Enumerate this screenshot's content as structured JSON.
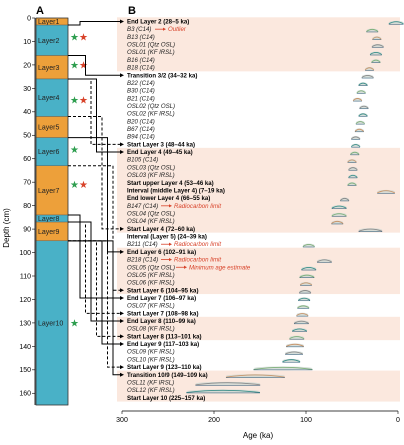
{
  "panel_a_label": "A",
  "panel_b_label": "B",
  "depth_axis": {
    "title": "Depth (cm)",
    "ticks": [
      0,
      10,
      20,
      30,
      40,
      50,
      60,
      70,
      80,
      90,
      100,
      110,
      120,
      130,
      140,
      150,
      160
    ],
    "max": 165
  },
  "age_axis": {
    "title": "Age (ka)",
    "ticks": [
      300,
      200,
      100,
      0
    ],
    "min": 0,
    "max": 300
  },
  "colors": {
    "teal": "#49b1c7",
    "orange": "#eda03a",
    "band": "#fbe8de",
    "red_text": "#d8432a",
    "green_star": "#2e9e4f",
    "red_star": "#d8432a"
  },
  "layers": [
    {
      "label": "Layer1",
      "top": 0,
      "bottom": 3,
      "color": "orange"
    },
    {
      "label": "Layer2",
      "top": 3,
      "bottom": 16,
      "color": "teal"
    },
    {
      "label": "Layer3",
      "top": 16,
      "bottom": 26,
      "color": "orange"
    },
    {
      "label": "Layer4",
      "top": 26,
      "bottom": 42,
      "color": "teal"
    },
    {
      "label": "Layer5",
      "top": 42,
      "bottom": 51,
      "color": "orange"
    },
    {
      "label": "Layer6",
      "top": 51,
      "bottom": 63,
      "color": "teal"
    },
    {
      "label": "Layer7",
      "top": 63,
      "bottom": 84,
      "color": "orange"
    },
    {
      "label": "Layer8",
      "top": 84,
      "bottom": 87,
      "color": "teal"
    },
    {
      "label": "Layer9",
      "top": 87,
      "bottom": 95,
      "color": "orange"
    },
    {
      "label": "Layer10",
      "top": 95,
      "bottom": 165,
      "color": "teal"
    }
  ],
  "stars": [
    {
      "depth": 8,
      "colors": [
        "green",
        "red"
      ]
    },
    {
      "depth": 20,
      "colors": [
        "green",
        "red"
      ]
    },
    {
      "depth": 35,
      "colors": [
        "green",
        "red"
      ]
    },
    {
      "depth": 56,
      "colors": [
        "green"
      ]
    },
    {
      "depth": 71,
      "colors": [
        "green",
        "red"
      ]
    },
    {
      "depth": 130,
      "colors": [
        "green"
      ]
    }
  ],
  "rows": [
    {
      "text": "End Layer 2 (28–5 ka)",
      "style": "bold",
      "band": true
    },
    {
      "text": "B3 (C14)",
      "style": "italic",
      "note": "Outlier",
      "band": true
    },
    {
      "text": "B13 (C14)",
      "style": "italic",
      "band": true
    },
    {
      "text": "OSL01 (Qtz OSL)",
      "style": "italic",
      "band": true
    },
    {
      "text": "OSL01 (KF IRSL)",
      "style": "italic",
      "band": true
    },
    {
      "text": "B16 (C14)",
      "style": "italic",
      "band": true
    },
    {
      "text": "B18 (C14)",
      "style": "italic",
      "band": true
    },
    {
      "text": "Transition 3/2 (34–32 ka)",
      "style": "bold",
      "band": false
    },
    {
      "text": "B22 (C14)",
      "style": "italic",
      "band": false
    },
    {
      "text": "B30 (C14)",
      "style": "italic",
      "band": false
    },
    {
      "text": "B21 (C14)",
      "style": "italic",
      "band": false
    },
    {
      "text": "OSL02 (Qtz OSL)",
      "style": "italic",
      "band": false
    },
    {
      "text": "OSL02 (KF IRSL)",
      "style": "italic",
      "band": false
    },
    {
      "text": "B20 (C14)",
      "style": "italic",
      "band": false
    },
    {
      "text": "B67 (C14)",
      "style": "italic",
      "band": false
    },
    {
      "text": "B94 (C14)",
      "style": "italic",
      "band": false
    },
    {
      "text": "Start Layer 3 (48–44 ka)",
      "style": "bold",
      "band": false
    },
    {
      "text": "End Layer 4 (49–45 ka)",
      "style": "bold",
      "band": true
    },
    {
      "text": "B105 (C14)",
      "style": "italic",
      "band": true
    },
    {
      "text": "OSL03 (Qtz OSL)",
      "style": "italic",
      "band": true
    },
    {
      "text": "OSL03 (KF IRSL)",
      "style": "italic",
      "band": true
    },
    {
      "text": "Start upper Layer 4 (53–46 ka)",
      "style": "bold",
      "band": true
    },
    {
      "text": "Interval (middle Layer 4) (7–19 ka)",
      "style": "bold",
      "band": true
    },
    {
      "text": "End lower Layer 4 (66–55 ka)",
      "style": "bold",
      "band": true
    },
    {
      "text": "B147 (C14)",
      "style": "italic",
      "note": "Radiocarbon limit",
      "band": true
    },
    {
      "text": "OSL04 (Qtz OSL)",
      "style": "italic",
      "band": true
    },
    {
      "text": "OSL04 (KF IRSL)",
      "style": "italic",
      "band": true
    },
    {
      "text": "Start Layer 4 (72–60 ka)",
      "style": "bold",
      "band": true
    },
    {
      "text": "Interval (Layer 5) (24–39 ka)",
      "style": "bold",
      "band": false
    },
    {
      "text": "B211 (C14)",
      "style": "italic",
      "note": "Radiocarbon limit",
      "band": false
    },
    {
      "text": "End Layer 6 (102–91 ka)",
      "style": "bold",
      "band": true
    },
    {
      "text": "B218 (C14)",
      "style": "italic",
      "note": "Radiocarbon limit",
      "band": true
    },
    {
      "text": "OSL05 (Qtz OSL)",
      "style": "italic",
      "note": "Minimum age estimate",
      "band": true
    },
    {
      "text": "OSL05 (KF IRSL)",
      "style": "italic",
      "band": true
    },
    {
      "text": "OSL06 (KF IRSL)",
      "style": "italic",
      "band": true
    },
    {
      "text": "Start Layer 6 (104–95 ka)",
      "style": "bold",
      "band": true
    },
    {
      "text": "End Layer 7 (106–97 ka)",
      "style": "bold",
      "band": false
    },
    {
      "text": "OSL07 (KF IRSL)",
      "style": "italic",
      "band": false
    },
    {
      "text": "Start Layer 7 (108–98 ka)",
      "style": "bold",
      "band": false
    },
    {
      "text": "End Layer 8 (110–99 ka)",
      "style": "bold",
      "band": true
    },
    {
      "text": "OSL08 (KF IRSL)",
      "style": "italic",
      "band": true
    },
    {
      "text": "Start Layer 8 (113–101 ka)",
      "style": "bold",
      "band": true
    },
    {
      "text": "End Layer 9 (117–103 ka)",
      "style": "bold",
      "band": false
    },
    {
      "text": "OSL09 (KF IRSL)",
      "style": "italic",
      "band": false
    },
    {
      "text": "OSL10 (KF IRSL)",
      "style": "italic",
      "band": false
    },
    {
      "text": "Start Layer 9 (123–110 ka)",
      "style": "bold",
      "band": false
    },
    {
      "text": "Transition 10/9 (149–109 ka)",
      "style": "bold",
      "band": true
    },
    {
      "text": "OSL11 (KF IRSL)",
      "style": "italic",
      "band": true
    },
    {
      "text": "OSL12 (KF IRSL)",
      "style": "italic",
      "band": true
    },
    {
      "text": "Start Layer 10 (225–157 ka)",
      "style": "bold",
      "band": true
    }
  ],
  "connectors": [
    {
      "depth": 3,
      "row": 0,
      "style": "solid"
    },
    {
      "depth": 16,
      "row": 7,
      "style": "solid"
    },
    {
      "depth": 26,
      "row": 16,
      "style": "dashed"
    },
    {
      "depth": 26,
      "row": 17,
      "style": "solid"
    },
    {
      "depth": 42,
      "row": 27,
      "style": "dashed"
    },
    {
      "depth": 51,
      "row": 30,
      "style": "solid"
    },
    {
      "depth": 63,
      "row": 35,
      "style": "dashed"
    },
    {
      "depth": 84,
      "row": 36,
      "style": "solid"
    },
    {
      "depth": 87,
      "row": 38,
      "style": "dashed"
    },
    {
      "depth": 87,
      "row": 39,
      "style": "solid"
    },
    {
      "depth": 95,
      "row": 41,
      "style": "dashed"
    },
    {
      "depth": 95,
      "row": 42,
      "style": "solid"
    },
    {
      "depth": 95,
      "row": 45,
      "style": "dashed"
    },
    {
      "depth": 95,
      "row": 46,
      "style": "solid"
    }
  ],
  "chart_data": {
    "type": "scatter",
    "xlabel": "Age (ka)",
    "ylabel": "Depth (cm)",
    "xlim": [
      300,
      0
    ],
    "ylim": [
      165,
      0
    ],
    "series": [
      {
        "values": [
          [
            2,
            5
          ],
          [
            28,
            4
          ],
          [
            23,
            3
          ],
          [
            22,
            4
          ],
          [
            24,
            4
          ],
          [
            24,
            3
          ],
          [
            31,
            3
          ],
          [
            33,
            4
          ],
          [
            38,
            3
          ],
          [
            40,
            3
          ],
          [
            44,
            3
          ],
          [
            37,
            3
          ],
          [
            38,
            3
          ],
          [
            41,
            3
          ],
          [
            42,
            3
          ],
          [
            46,
            3
          ],
          [
            46,
            3
          ],
          [
            47,
            3
          ],
          [
            50,
            3
          ],
          [
            49,
            3
          ],
          [
            49,
            3
          ],
          [
            50,
            3
          ],
          [
            13,
            6
          ],
          [
            58,
            3
          ],
          [
            64,
            5
          ],
          [
            64,
            5
          ],
          [
            66,
            4
          ],
          [
            30,
            8
          ],
          [
            1,
            0
          ],
          [
            97,
            4
          ],
          [
            1,
            0
          ],
          [
            80,
            5
          ],
          [
            97,
            5
          ],
          [
            99,
            5
          ],
          [
            100,
            4
          ],
          [
            101,
            4
          ],
          [
            102,
            4
          ],
          [
            103,
            4
          ],
          [
            104,
            4
          ],
          [
            105,
            5
          ],
          [
            107,
            5
          ],
          [
            110,
            5
          ],
          [
            112,
            6
          ],
          [
            113,
            6
          ],
          [
            116,
            6
          ],
          [
            125,
            20
          ],
          [
            155,
            20
          ],
          [
            185,
            22
          ],
          [
            190,
            25
          ]
        ]
      }
    ]
  }
}
